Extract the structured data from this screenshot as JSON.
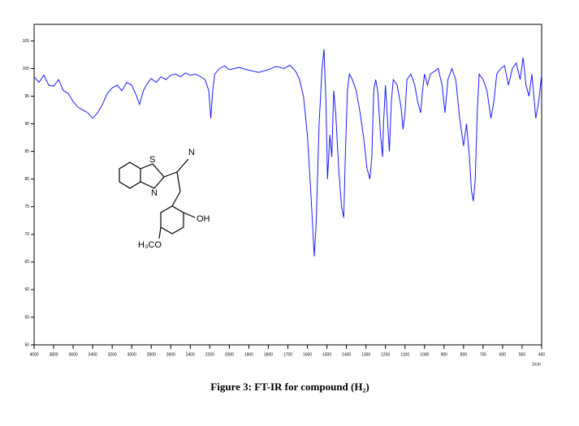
{
  "chart_data": {
    "type": "line",
    "title": "Figure 3: FT-IR for compound (H₂)",
    "xlabel": "1/cm",
    "annotations": [
      "S",
      "N",
      "N",
      "OH",
      "H₃CO"
    ],
    "xlim": [
      4000,
      400
    ],
    "xticks": [
      4000,
      3800,
      3600,
      3400,
      3200,
      3000,
      2800,
      2600,
      2400,
      2200,
      2000,
      1900,
      1800,
      1700,
      1600,
      1500,
      1400,
      1300,
      1200,
      1100,
      1000,
      900,
      800,
      700,
      600,
      500,
      400
    ],
    "ylim": [
      50,
      108
    ],
    "yticks": [
      50,
      55,
      60,
      65,
      70,
      75,
      80,
      85,
      90,
      95,
      100,
      105
    ],
    "series": [
      {
        "name": "H₂",
        "color": "#1a1aff",
        "x": [
          4000,
          3950,
          3900,
          3850,
          3800,
          3750,
          3700,
          3650,
          3600,
          3550,
          3500,
          3450,
          3400,
          3350,
          3300,
          3250,
          3200,
          3150,
          3100,
          3050,
          3000,
          2950,
          2920,
          2880,
          2850,
          2800,
          2750,
          2700,
          2650,
          2600,
          2550,
          2500,
          2450,
          2400,
          2350,
          2300,
          2250,
          2210,
          2190,
          2170,
          2150,
          2100,
          2050,
          2000,
          1950,
          1900,
          1850,
          1800,
          1760,
          1720,
          1690,
          1660,
          1640,
          1620,
          1600,
          1580,
          1565,
          1555,
          1540,
          1525,
          1515,
          1505,
          1497,
          1485,
          1475,
          1465,
          1455,
          1440,
          1425,
          1414,
          1405,
          1395,
          1385,
          1370,
          1350,
          1330,
          1310,
          1295,
          1280,
          1270,
          1260,
          1250,
          1240,
          1225,
          1215,
          1210,
          1200,
          1190,
          1180,
          1170,
          1160,
          1140,
          1120,
          1110,
          1100,
          1090,
          1070,
          1050,
          1035,
          1020,
          1010,
          1000,
          985,
          970,
          950,
          930,
          910,
          895,
          880,
          860,
          840,
          820,
          800,
          785,
          770,
          760,
          750,
          740,
          730,
          720,
          700,
          680,
          660,
          645,
          630,
          610,
          590,
          570,
          550,
          530,
          510,
          495,
          480,
          465,
          450,
          430,
          415,
          400
        ],
        "values": [
          98.5,
          97.5,
          98.8,
          97,
          96.8,
          98,
          96,
          95.5,
          94,
          93,
          92.5,
          92,
          91,
          92,
          93.5,
          95.5,
          96.5,
          97,
          96,
          97.5,
          97,
          95,
          93.5,
          96,
          97,
          98.2,
          97.5,
          98.5,
          98,
          98.8,
          99,
          98.5,
          99.2,
          98.8,
          99,
          98.6,
          98,
          96,
          91,
          96,
          99,
          100,
          100.5,
          99.8,
          100.2,
          99.7,
          99.3,
          99.8,
          100.4,
          100,
          100.6,
          99.5,
          98,
          95,
          88,
          76,
          66,
          72,
          90,
          100,
          103.5,
          94,
          80,
          88,
          84,
          96,
          92,
          82,
          75,
          73,
          85,
          96,
          99,
          98,
          96,
          92,
          87,
          82,
          80,
          84,
          96,
          98,
          96,
          88,
          84,
          90,
          97,
          91,
          85,
          94,
          98,
          97,
          93,
          89,
          92,
          98,
          99,
          97,
          94,
          92,
          96,
          99,
          97,
          99,
          99.5,
          100,
          97,
          92,
          98,
          100,
          98,
          91,
          86,
          90,
          84,
          78,
          76,
          80,
          92,
          99,
          98,
          96,
          91,
          94,
          99,
          100,
          100.5,
          97,
          100,
          101,
          98,
          102,
          97,
          95,
          99,
          91,
          94,
          99
        ]
      }
    ]
  }
}
